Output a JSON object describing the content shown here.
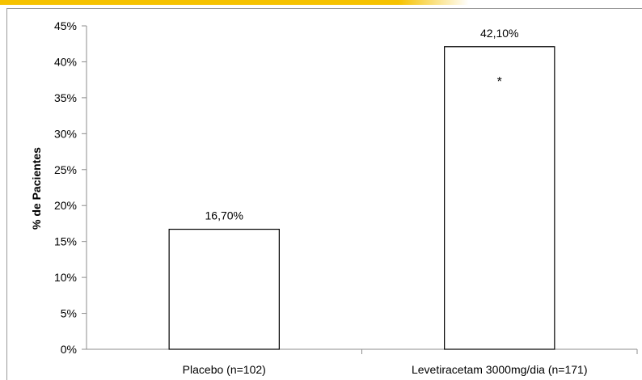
{
  "chart_data": {
    "type": "bar",
    "title": "",
    "xlabel": "",
    "ylabel": "% de Pacientes",
    "ylim": [
      0,
      45
    ],
    "yticks": [
      "0%",
      "5%",
      "10%",
      "15%",
      "20%",
      "25%",
      "30%",
      "35%",
      "40%",
      "45%"
    ],
    "categories": [
      "Placebo (n=102)",
      "Levetiracetam 3000mg/dia (n=171)"
    ],
    "values": [
      16.7,
      42.1
    ],
    "data_labels": [
      "16,70%",
      "42,10%"
    ],
    "annotations": [
      {
        "category_index": 1,
        "text": "*"
      }
    ],
    "grid": false,
    "legend": "none",
    "colors": {
      "bar_fill": "#ffffff",
      "bar_stroke": "#000000",
      "axis": "#8c8c8c",
      "accent_band": "#f6c200"
    }
  }
}
